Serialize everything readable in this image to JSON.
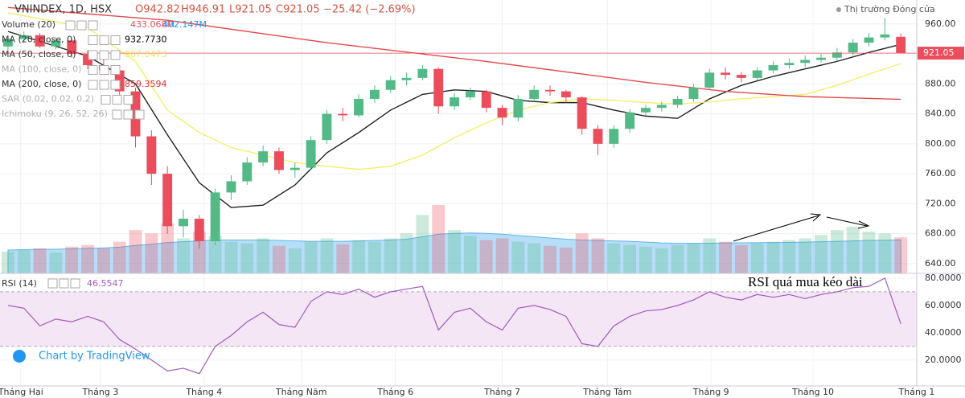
{
  "chart_data": {
    "type": "candlestick",
    "title": "VNINDEX, 1D, HSX",
    "ohlc_text": [
      "O942.82",
      "H946.91",
      "L921.05",
      "C921.05",
      "−25.42 (−2.69%)"
    ],
    "market_status": "Thị trường Đóng cửa",
    "up_color": "#53b987",
    "down_color": "#eb4d5c",
    "xlim": [
      -0.5,
      57
    ],
    "xticks": [
      {
        "value": 0.8,
        "label": "Tháng Hai"
      },
      {
        "value": 5.8,
        "label": "Tháng 3"
      },
      {
        "value": 12.3,
        "label": "Tháng 4"
      },
      {
        "value": 18.4,
        "label": "Tháng Năm"
      },
      {
        "value": 24.3,
        "label": "Tháng 6"
      },
      {
        "value": 31,
        "label": "Tháng 7"
      },
      {
        "value": 37.6,
        "label": "Tháng Tám"
      },
      {
        "value": 44.1,
        "label": "Tháng 9"
      },
      {
        "value": 50.5,
        "label": "Tháng 10"
      },
      {
        "value": 57,
        "label": "Tháng 1"
      }
    ],
    "ylim": [
      627,
      992
    ],
    "yticks": [
      {
        "value": 960,
        "label": "960.00"
      },
      {
        "value": 880,
        "label": "880.00"
      },
      {
        "value": 840,
        "label": "840.00"
      },
      {
        "value": 800,
        "label": "800.00"
      },
      {
        "value": 760,
        "label": "760.00"
      },
      {
        "value": 720,
        "label": "720.00"
      },
      {
        "value": 680,
        "label": "680.00"
      },
      {
        "value": 640,
        "label": "640.00"
      }
    ],
    "grid": true,
    "ohlc": [
      [
        930,
        945,
        925,
        940
      ],
      [
        940,
        950,
        935,
        945
      ],
      [
        945,
        948,
        928,
        930
      ],
      [
        930,
        942,
        926,
        938
      ],
      [
        938,
        940,
        915,
        920
      ],
      [
        920,
        925,
        900,
        905
      ],
      [
        905,
        915,
        895,
        898
      ],
      [
        898,
        902,
        865,
        870
      ],
      [
        870,
        875,
        795,
        810
      ],
      [
        810,
        818,
        745,
        760
      ],
      [
        760,
        770,
        680,
        690
      ],
      [
        690,
        712,
        675,
        700
      ],
      [
        700,
        705,
        660,
        670
      ],
      [
        670,
        740,
        665,
        735
      ],
      [
        735,
        758,
        725,
        750
      ],
      [
        750,
        782,
        745,
        775
      ],
      [
        775,
        798,
        770,
        790
      ],
      [
        790,
        795,
        760,
        765
      ],
      [
        765,
        775,
        755,
        768
      ],
      [
        768,
        810,
        765,
        805
      ],
      [
        805,
        845,
        800,
        840
      ],
      [
        840,
        848,
        830,
        838
      ],
      [
        838,
        866,
        835,
        860
      ],
      [
        860,
        878,
        855,
        872
      ],
      [
        872,
        890,
        868,
        885
      ],
      [
        885,
        895,
        878,
        888
      ],
      [
        888,
        905,
        885,
        900
      ],
      [
        900,
        902,
        840,
        850
      ],
      [
        850,
        868,
        845,
        862
      ],
      [
        862,
        875,
        858,
        870
      ],
      [
        870,
        872,
        842,
        848
      ],
      [
        848,
        852,
        825,
        835
      ],
      [
        835,
        865,
        830,
        860
      ],
      [
        860,
        878,
        856,
        872
      ],
      [
        872,
        878,
        864,
        870
      ],
      [
        870,
        872,
        855,
        862
      ],
      [
        862,
        864,
        812,
        820
      ],
      [
        820,
        825,
        785,
        800
      ],
      [
        800,
        825,
        795,
        820
      ],
      [
        820,
        846,
        815,
        842
      ],
      [
        842,
        852,
        838,
        848
      ],
      [
        848,
        856,
        843,
        852
      ],
      [
        852,
        864,
        848,
        860
      ],
      [
        860,
        880,
        856,
        875
      ],
      [
        875,
        900,
        872,
        895
      ],
      [
        895,
        902,
        886,
        892
      ],
      [
        892,
        896,
        882,
        888
      ],
      [
        888,
        902,
        885,
        898
      ],
      [
        898,
        910,
        894,
        905
      ],
      [
        905,
        914,
        900,
        908
      ],
      [
        908,
        918,
        902,
        912
      ],
      [
        912,
        920,
        908,
        915
      ],
      [
        915,
        928,
        910,
        922
      ],
      [
        922,
        940,
        918,
        935
      ],
      [
        935,
        948,
        930,
        942
      ],
      [
        942,
        968,
        938,
        946
      ],
      [
        942.82,
        946.91,
        921.05,
        921.05
      ]
    ],
    "indicators": [
      {
        "name": "Volume (20)",
        "values": [
          "433.068M",
          "402.147M"
        ],
        "colors": [
          "#eb4d5c",
          "#2196f3"
        ]
      },
      {
        "name": "MA (20, close, 0)",
        "values": [
          "932.7730"
        ],
        "colors": [
          "#000000"
        ]
      },
      {
        "name": "MA (50, close, 0)",
        "values": [
          "907.0473"
        ],
        "colors": [
          "#e8e84a"
        ]
      },
      {
        "name": "MA (100, close, 0)",
        "values": [],
        "colors": []
      },
      {
        "name": "MA (200, close, 0)",
        "values": [
          "859.3594"
        ],
        "colors": [
          "#e03030"
        ]
      },
      {
        "name": "SAR (0.02, 0.02, 0.2)",
        "values": [],
        "colors": []
      },
      {
        "name": "Ichimoku (9, 26, 52, 26)",
        "values": [],
        "colors": []
      }
    ],
    "moving_averages": [
      {
        "name": "MA 20",
        "color": "#222222",
        "x": [
          0,
          5,
          8,
          10,
          12,
          14,
          16,
          18,
          20,
          22,
          24,
          26,
          28,
          30,
          32,
          34,
          36,
          38,
          40,
          42,
          44,
          46,
          48,
          50,
          52,
          54,
          56
        ],
        "values": [
          950,
          917,
          880,
          812,
          748,
          715,
          718,
          745,
          788,
          815,
          845,
          866,
          872,
          870,
          858,
          855,
          855,
          845,
          837,
          834,
          860,
          878,
          890,
          900,
          910,
          922,
          932.773
        ]
      },
      {
        "name": "MA 50",
        "color": "#f2ef6a",
        "x": [
          0,
          5,
          8,
          10,
          12,
          14,
          16,
          18,
          20,
          22,
          24,
          26,
          28,
          30,
          32,
          34,
          36,
          38,
          40,
          42,
          44,
          46,
          48,
          50,
          52,
          54,
          56
        ],
        "values": [
          975,
          955,
          910,
          845,
          815,
          795,
          785,
          775,
          770,
          766,
          770,
          785,
          808,
          828,
          845,
          855,
          860,
          858,
          855,
          853,
          856,
          860,
          863,
          866,
          878,
          893,
          907.0473
        ]
      },
      {
        "name": "MA 200",
        "color": "#e34a4a",
        "x": [
          0,
          10,
          20,
          30,
          40,
          45,
          50,
          56
        ],
        "values": [
          982,
          965,
          935,
          910,
          882,
          870,
          863,
          859.3594
        ]
      }
    ],
    "volume": {
      "values": [
        260,
        280,
        300,
        250,
        320,
        340,
        300,
        380,
        520,
        480,
        600,
        420,
        500,
        450,
        380,
        360,
        420,
        330,
        300,
        380,
        420,
        350,
        400,
        380,
        420,
        480,
        700,
        820,
        520,
        450,
        400,
        420,
        380,
        360,
        330,
        310,
        480,
        420,
        360,
        340,
        320,
        300,
        340,
        360,
        420,
        380,
        340,
        360,
        380,
        400,
        420,
        460,
        520,
        560,
        500,
        480,
        433.068
      ],
      "ma": [
        280,
        285,
        290,
        290,
        295,
        300,
        305,
        315,
        335,
        350,
        370,
        380,
        390,
        400,
        400,
        400,
        400,
        395,
        390,
        385,
        385,
        385,
        390,
        395,
        400,
        410,
        440,
        470,
        480,
        485,
        480,
        470,
        455,
        440,
        425,
        410,
        400,
        395,
        390,
        385,
        375,
        365,
        360,
        360,
        362,
        365,
        366,
        368,
        370,
        372,
        375,
        380,
        385,
        390,
        395,
        398,
        402.147
      ],
      "ma_color": "#7cc3f2"
    },
    "rsi": {
      "title": "RSI (14)",
      "value_text": "46.5547",
      "color": "#a05cc0",
      "band": [
        30,
        70
      ],
      "ylim": [
        1,
        83.5
      ],
      "yticks": [
        {
          "value": 80,
          "label": "80.0000"
        },
        {
          "value": 60,
          "label": "60.0000"
        },
        {
          "value": 40,
          "label": "40.0000"
        },
        {
          "value": 20,
          "label": "20.0000"
        }
      ],
      "values": [
        60,
        58,
        45,
        50,
        48,
        52,
        48,
        35,
        28,
        20,
        12,
        14,
        10,
        30,
        38,
        48,
        55,
        46,
        44,
        63,
        70,
        68,
        72,
        66,
        70,
        72,
        74,
        42,
        55,
        58,
        48,
        42,
        58,
        60,
        57,
        52,
        32,
        30,
        45,
        52,
        56,
        57,
        60,
        64,
        70,
        66,
        64,
        68,
        66,
        68,
        65,
        68,
        70,
        73,
        74,
        80,
        46.5547
      ]
    },
    "annotation": "RSI quá mua kéo dài",
    "branding": "Chart by TradingView"
  }
}
